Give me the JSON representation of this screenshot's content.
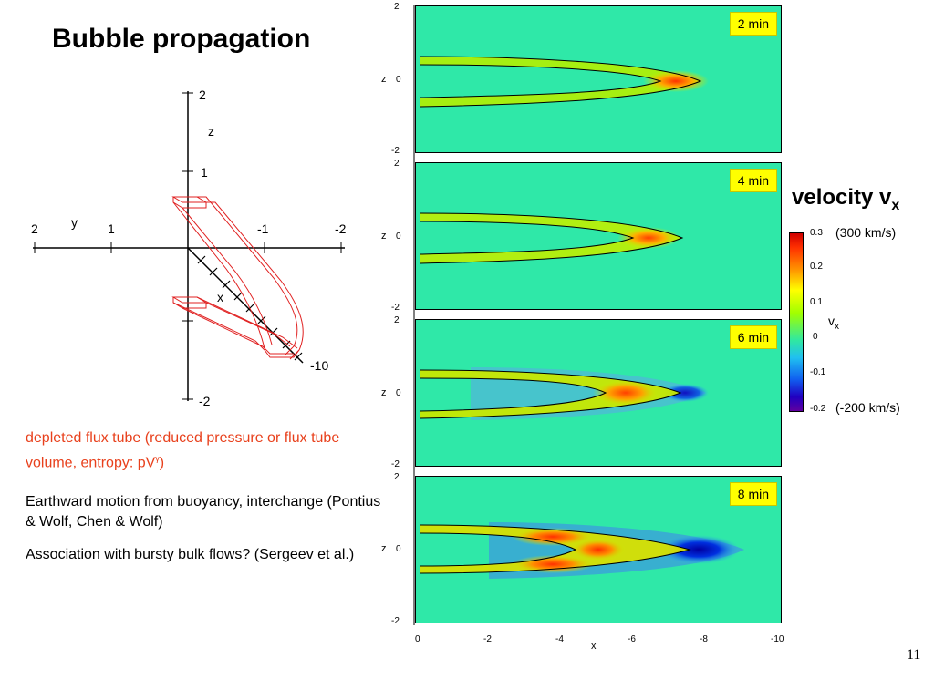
{
  "title": "Bubble propagation",
  "diagram": {
    "z_label": "z",
    "y_label": "y",
    "x_label": "x",
    "z_ticks": [
      "2",
      "1",
      "-2"
    ],
    "y_ticks": [
      "2",
      "1",
      "-1",
      "-2"
    ],
    "x_tick": "-10"
  },
  "red_text_main": "depleted flux tube (reduced pressure or flux tube volume, entropy: pV",
  "red_text_sup": "γ",
  "red_text_end": ")",
  "text1": "Earthward motion from buoyancy, interchange (Pontius & Wolf, Chen & Wolf)",
  "text2": "Association with bursty bulk flows? (Sergeev et al.)",
  "panels": [
    {
      "time": "2 min"
    },
    {
      "time": "4 min"
    },
    {
      "time": "6 min"
    },
    {
      "time": "8 min"
    }
  ],
  "axis": {
    "z_label": "z",
    "z_ticks": [
      "2",
      "0",
      "-2"
    ],
    "x_label": "x",
    "x_ticks": [
      "0",
      "-2",
      "-4",
      "-6",
      "-8",
      "-10"
    ]
  },
  "velocity": {
    "title_main": "velocity v",
    "title_sub": "x",
    "unit_top": "(300 km/s)",
    "unit_bottom": "(-200 km/s)",
    "colorbar_ticks": [
      "0.3",
      "0.2",
      "0.1",
      "0",
      "-0.1",
      "-0.2"
    ],
    "vx_main": "v",
    "vx_sub": "x"
  },
  "page_number": "11"
}
